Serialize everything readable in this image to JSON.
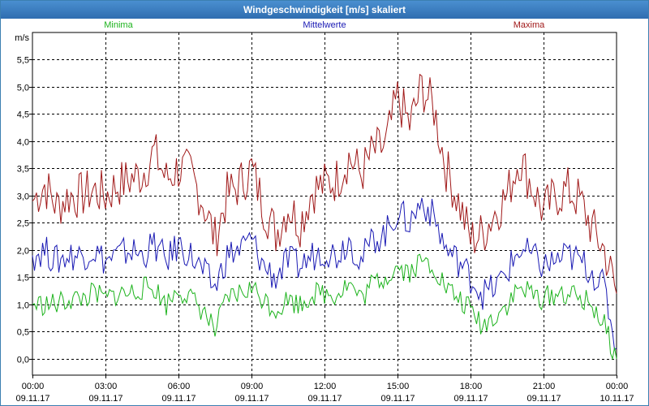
{
  "window": {
    "title": "Windgeschwindigkeit [m/s] skaliert"
  },
  "chart_data": {
    "type": "line",
    "title": "Windgeschwindigkeit [m/s] skaliert",
    "ylabel": "m/s",
    "xlabel": "",
    "ylim": [
      -0.3,
      6.0
    ],
    "xlim": [
      0,
      24
    ],
    "grid": true,
    "legend": [
      {
        "name": "Minima",
        "color": "#1db31d",
        "placement": "top-left"
      },
      {
        "name": "Mittelwerte",
        "color": "#1a1ab4",
        "placement": "top-center"
      },
      {
        "name": "Maxima",
        "color": "#a01818",
        "placement": "top-right"
      }
    ],
    "y_ticks": [
      {
        "value": 0.0,
        "label": "0,0"
      },
      {
        "value": 0.5,
        "label": "0,5"
      },
      {
        "value": 1.0,
        "label": "1,0"
      },
      {
        "value": 1.5,
        "label": "1,5"
      },
      {
        "value": 2.0,
        "label": "2,0"
      },
      {
        "value": 2.5,
        "label": "2,5"
      },
      {
        "value": 3.0,
        "label": "3,0"
      },
      {
        "value": 3.5,
        "label": "3,5"
      },
      {
        "value": 4.0,
        "label": "4,0"
      },
      {
        "value": 4.5,
        "label": "4,5"
      },
      {
        "value": 5.0,
        "label": "5,0"
      },
      {
        "value": 5.5,
        "label": "5,5"
      }
    ],
    "x_ticks": [
      {
        "value": 0,
        "time": "00:00",
        "date": "09.11.17"
      },
      {
        "value": 3,
        "time": "03:00",
        "date": "09.11.17"
      },
      {
        "value": 6,
        "time": "06:00",
        "date": "09.11.17"
      },
      {
        "value": 9,
        "time": "09:00",
        "date": "09.11.17"
      },
      {
        "value": 12,
        "time": "12:00",
        "date": "09.11.17"
      },
      {
        "value": 15,
        "time": "15:00",
        "date": "09.11.17"
      },
      {
        "value": 18,
        "time": "18:00",
        "date": "09.11.17"
      },
      {
        "value": 21,
        "time": "21:00",
        "date": "09.11.17"
      },
      {
        "value": 24,
        "time": "00:00",
        "date": "10.11.17"
      }
    ],
    "x": [
      0,
      0.5,
      1,
      1.5,
      2,
      2.5,
      3,
      3.5,
      4,
      4.5,
      5,
      5.5,
      6,
      6.5,
      7,
      7.5,
      8,
      8.5,
      9,
      9.5,
      10,
      10.5,
      11,
      11.5,
      12,
      12.5,
      13,
      13.5,
      14,
      14.5,
      15,
      15.5,
      16,
      16.5,
      17,
      17.5,
      18,
      18.5,
      19,
      19.5,
      20,
      20.5,
      21,
      21.5,
      22,
      22.5,
      23,
      23.5,
      24
    ],
    "series": [
      {
        "name": "Maxima",
        "color": "#a01818",
        "values": [
          2.9,
          3.2,
          2.8,
          3.0,
          3.0,
          3.1,
          3.0,
          3.2,
          3.3,
          3.4,
          3.8,
          3.3,
          3.5,
          3.4,
          2.9,
          2.2,
          3.0,
          3.2,
          3.5,
          2.8,
          2.3,
          2.8,
          2.5,
          3.1,
          3.2,
          3.3,
          3.7,
          3.4,
          3.8,
          3.9,
          4.8,
          4.3,
          5.0,
          4.6,
          3.5,
          2.9,
          2.2,
          2.3,
          2.7,
          3.0,
          3.7,
          3.2,
          2.7,
          3.0,
          3.1,
          2.9,
          2.4,
          2.0,
          1.2
        ]
      },
      {
        "name": "Mittelwerte",
        "color": "#1a1ab4",
        "values": [
          1.9,
          2.0,
          1.8,
          1.9,
          1.9,
          2.0,
          1.8,
          1.9,
          2.0,
          1.9,
          2.1,
          1.8,
          2.1,
          1.9,
          1.6,
          1.3,
          1.9,
          2.0,
          2.2,
          1.7,
          1.5,
          1.8,
          1.7,
          1.9,
          2.0,
          1.9,
          2.2,
          1.8,
          2.2,
          2.3,
          2.7,
          2.5,
          2.9,
          2.6,
          2.0,
          1.8,
          1.5,
          1.2,
          1.3,
          1.6,
          2.0,
          1.9,
          1.7,
          1.8,
          1.9,
          1.8,
          1.6,
          1.3,
          0.2
        ]
      },
      {
        "name": "Minima",
        "color": "#1db31d",
        "values": [
          1.0,
          1.0,
          1.0,
          1.1,
          1.1,
          1.2,
          1.1,
          1.2,
          1.2,
          1.3,
          1.3,
          1.0,
          1.3,
          1.1,
          0.9,
          0.5,
          1.1,
          1.2,
          1.3,
          1.1,
          0.9,
          1.1,
          1.0,
          1.2,
          1.2,
          1.2,
          1.4,
          1.1,
          1.4,
          1.5,
          1.7,
          1.6,
          1.8,
          1.7,
          1.3,
          1.1,
          0.9,
          0.6,
          0.8,
          1.0,
          1.3,
          1.2,
          1.1,
          1.2,
          1.2,
          1.1,
          1.0,
          0.6,
          0.0
        ]
      }
    ]
  }
}
